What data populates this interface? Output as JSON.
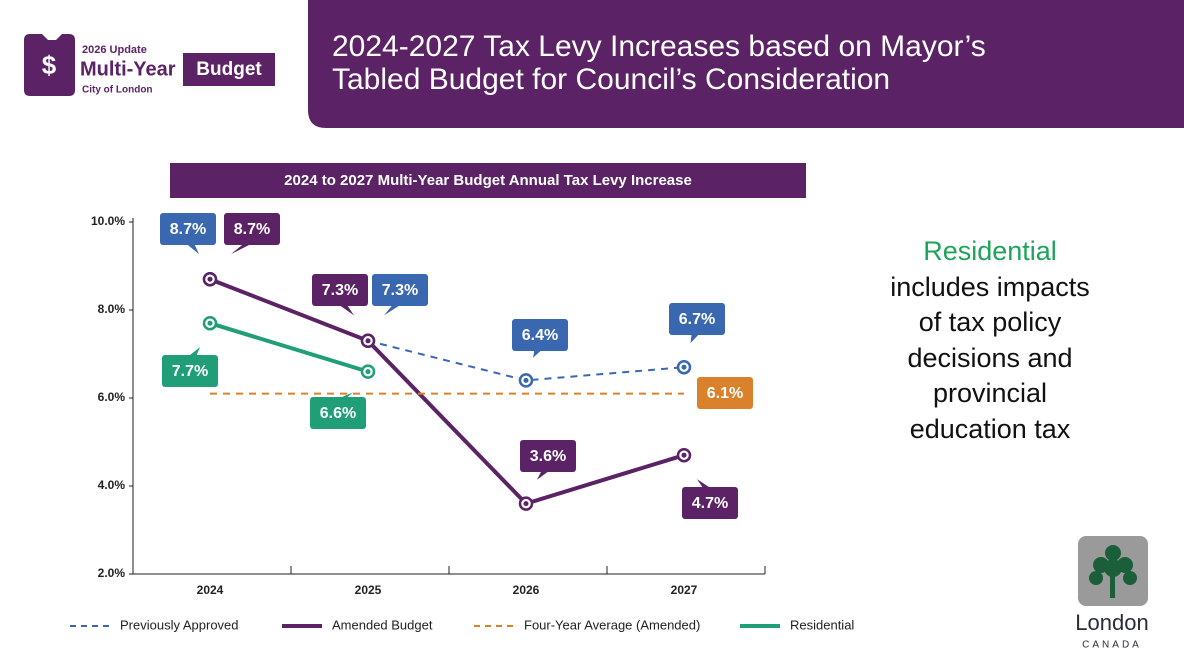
{
  "slide": {
    "title_lines": [
      "2024-2027 Tax Levy Increases based on Mayor’s",
      "Tabled Budget for Council’s Consideration"
    ],
    "logo": {
      "icon": "$",
      "update": "2026 Update",
      "multi_year": "Multi-Year",
      "budget": "Budget",
      "city": "City of London"
    },
    "note": {
      "highlight": "Residential",
      "text": "includes impacts of tax policy decisions and provincial education tax"
    },
    "brand": {
      "name": "London",
      "country": "CANADA"
    }
  },
  "chart_data": {
    "type": "line",
    "title": "2024 to 2027 Multi-Year Budget Annual Tax Levy Increase",
    "categories": [
      "2024",
      "2025",
      "2026",
      "2027"
    ],
    "ylim": [
      2,
      10
    ],
    "yticks": [
      {
        "value": 2,
        "label": "2.0%"
      },
      {
        "value": 4,
        "label": "4.0%"
      },
      {
        "value": 6,
        "label": "6.0%"
      },
      {
        "value": 8,
        "label": "8.0%"
      },
      {
        "value": 10,
        "label": "10.0%"
      }
    ],
    "grid": false,
    "legend": "bottom",
    "series": [
      {
        "name": "Previously Approved",
        "color": "#3a68b0",
        "line_style": "dashed",
        "markers": true,
        "values": [
          8.7,
          7.3,
          6.4,
          6.7
        ],
        "value_labels": [
          "8.7%",
          "7.3%",
          "6.4%",
          "6.7%"
        ]
      },
      {
        "name": "Amended Budget",
        "color": "#5b2266",
        "line_style": "solid",
        "markers": true,
        "values": [
          8.7,
          7.3,
          3.6,
          4.7
        ],
        "value_labels": [
          "8.7%",
          "7.3%",
          "3.6%",
          "4.7%"
        ]
      },
      {
        "name": "Four-Year Average (Amended)",
        "color": "#d9822b",
        "line_style": "dashed",
        "markers": false,
        "values": [
          6.1,
          6.1,
          6.1,
          6.1
        ],
        "value_labels": [
          null,
          null,
          null,
          "6.1%"
        ]
      },
      {
        "name": "Residential",
        "color": "#1f9e77",
        "line_style": "solid",
        "markers": true,
        "values": [
          7.7,
          6.6,
          null,
          null
        ],
        "value_labels": [
          "7.7%",
          "6.6%",
          null,
          null
        ]
      }
    ]
  }
}
